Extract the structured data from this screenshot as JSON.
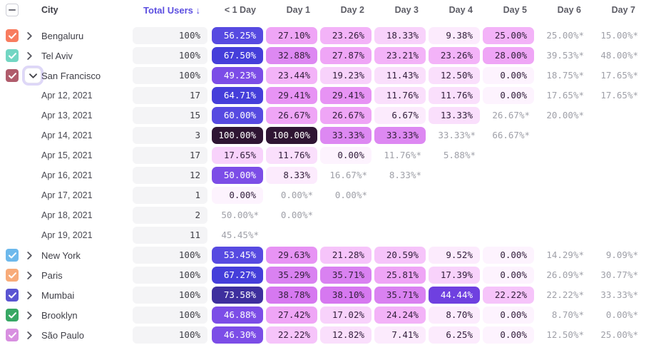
{
  "table": {
    "columns": [
      "City",
      "Total Users ↓",
      "< 1 Day",
      "Day 1",
      "Day 2",
      "Day 3",
      "Day 4",
      "Day 5",
      "Day 6",
      "Day 7"
    ],
    "select_all_state": "indeterminate",
    "rows": [
      {
        "type": "city",
        "label": "Bengaluru",
        "checked": true,
        "expanded": false,
        "checkbox_color": "#f87c5f",
        "total": "100%",
        "cells": [
          "56.25%",
          "27.10%",
          "23.26%",
          "18.33%",
          "9.38%",
          "25.00%",
          "25.00%*",
          "15.00%*"
        ]
      },
      {
        "type": "city",
        "label": "Tel Aviv",
        "checked": true,
        "expanded": false,
        "checkbox_color": "#72d6c3",
        "total": "100%",
        "cells": [
          "67.50%",
          "32.88%",
          "27.87%",
          "23.21%",
          "23.26%",
          "28.00%",
          "39.53%*",
          "48.00%*"
        ]
      },
      {
        "type": "city",
        "label": "San Francisco",
        "checked": true,
        "expanded": true,
        "checkbox_color": "#b05c6c",
        "total": "100%",
        "cells": [
          "49.23%",
          "23.44%",
          "19.23%",
          "11.43%",
          "12.50%",
          "0.00%",
          "18.75%*",
          "17.65%*"
        ]
      },
      {
        "type": "date",
        "label": "Apr 12, 2021",
        "total": "17",
        "cells": [
          "64.71%",
          "29.41%",
          "29.41%",
          "11.76%",
          "11.76%",
          "0.00%",
          "17.65%*",
          "17.65%*"
        ]
      },
      {
        "type": "date",
        "label": "Apr 13, 2021",
        "total": "15",
        "cells": [
          "60.00%",
          "26.67%",
          "26.67%",
          "6.67%",
          "13.33%",
          "26.67%*",
          "20.00%*",
          ""
        ]
      },
      {
        "type": "date",
        "label": "Apr 14, 2021",
        "total": "3",
        "cells": [
          "100.00%",
          "100.00%",
          "33.33%",
          "33.33%",
          "33.33%*",
          "66.67%*",
          "",
          ""
        ]
      },
      {
        "type": "date",
        "label": "Apr 15, 2021",
        "total": "17",
        "cells": [
          "17.65%",
          "11.76%",
          "0.00%",
          "11.76%*",
          "5.88%*",
          "",
          "",
          ""
        ]
      },
      {
        "type": "date",
        "label": "Apr 16, 2021",
        "total": "12",
        "cells": [
          "50.00%",
          "8.33%",
          "16.67%*",
          "8.33%*",
          "",
          "",
          "",
          ""
        ]
      },
      {
        "type": "date",
        "label": "Apr 17, 2021",
        "total": "1",
        "cells": [
          "0.00%",
          "0.00%*",
          "0.00%*",
          "",
          "",
          "",
          "",
          ""
        ]
      },
      {
        "type": "date",
        "label": "Apr 18, 2021",
        "total": "2",
        "cells": [
          "50.00%*",
          "0.00%*",
          "",
          "",
          "",
          "",
          "",
          ""
        ]
      },
      {
        "type": "date",
        "label": "Apr 19, 2021",
        "total": "11",
        "cells": [
          "45.45%*",
          "",
          "",
          "",
          "",
          "",
          "",
          ""
        ]
      },
      {
        "type": "city",
        "label": "New York",
        "checked": true,
        "expanded": false,
        "checkbox_color": "#6db9ec",
        "total": "100%",
        "cells": [
          "53.45%",
          "29.63%",
          "21.28%",
          "20.59%",
          "9.52%",
          "0.00%",
          "14.29%*",
          "9.09%*"
        ]
      },
      {
        "type": "city",
        "label": "Paris",
        "checked": true,
        "expanded": false,
        "checkbox_color": "#f8ab79",
        "total": "100%",
        "cells": [
          "67.27%",
          "35.29%",
          "35.71%",
          "25.81%",
          "17.39%",
          "0.00%",
          "26.09%*",
          "30.77%*"
        ]
      },
      {
        "type": "city",
        "label": "Mumbai",
        "checked": true,
        "expanded": false,
        "checkbox_color": "#5a55d2",
        "total": "100%",
        "cells": [
          "73.58%",
          "38.78%",
          "38.10%",
          "35.71%",
          "44.44%",
          "22.22%",
          "22.22%*",
          "33.33%*"
        ]
      },
      {
        "type": "city",
        "label": "Brooklyn",
        "checked": true,
        "expanded": false,
        "checkbox_color": "#37a864",
        "total": "100%",
        "cells": [
          "46.88%",
          "27.42%",
          "17.02%",
          "24.24%",
          "8.70%",
          "0.00%",
          "8.70%*",
          "0.00%*"
        ]
      },
      {
        "type": "city",
        "label": "São Paulo",
        "checked": true,
        "expanded": false,
        "checkbox_color": "#d88fe0",
        "total": "100%",
        "cells": [
          "46.30%",
          "22.22%",
          "12.82%",
          "7.41%",
          "6.25%",
          "0.00%",
          "12.50%*",
          "25.00%*"
        ]
      }
    ]
  },
  "colors": {
    "accent": "#5b4ee0",
    "estimate_text": "#9fa0a8",
    "total_pill_bg": "#f4f4f6",
    "scale": [
      {
        "min": 95,
        "bg": "#2f1533",
        "fg": "#ffffff"
      },
      {
        "min": 70,
        "bg": "#3e2f9e",
        "fg": "#ffffff"
      },
      {
        "min": 62,
        "bg": "#453eda",
        "fg": "#ffffff"
      },
      {
        "min": 52,
        "bg": "#574ae1",
        "fg": "#ffffff"
      },
      {
        "min": 45.5,
        "bg": "#7c4de7",
        "fg": "#ffffff"
      },
      {
        "min": 41,
        "bg": "#6f40e0",
        "fg": "#ffffff"
      },
      {
        "min": 36.5,
        "bg": "#d678f0",
        "fg": "#33203c"
      },
      {
        "min": 34,
        "bg": "#d981f1",
        "fg": "#33203c"
      },
      {
        "min": 30.5,
        "bg": "#dd88f2",
        "fg": "#33203c"
      },
      {
        "min": 28.5,
        "bg": "#e793f4",
        "fg": "#33203c"
      },
      {
        "min": 25.5,
        "bg": "#efa5f6",
        "fg": "#33203c"
      },
      {
        "min": 22.5,
        "bg": "#f3b3f8",
        "fg": "#33203c"
      },
      {
        "min": 19.5,
        "bg": "#f6c4fa",
        "fg": "#33203c"
      },
      {
        "min": 16,
        "bg": "#f8d2fb",
        "fg": "#33203c"
      },
      {
        "min": 10.5,
        "bg": "#fadffc",
        "fg": "#33203c"
      },
      {
        "min": 5.5,
        "bg": "#fcebfd",
        "fg": "#33203c"
      },
      {
        "min": 0,
        "bg": "#fdf3fe",
        "fg": "#33203c"
      }
    ]
  }
}
